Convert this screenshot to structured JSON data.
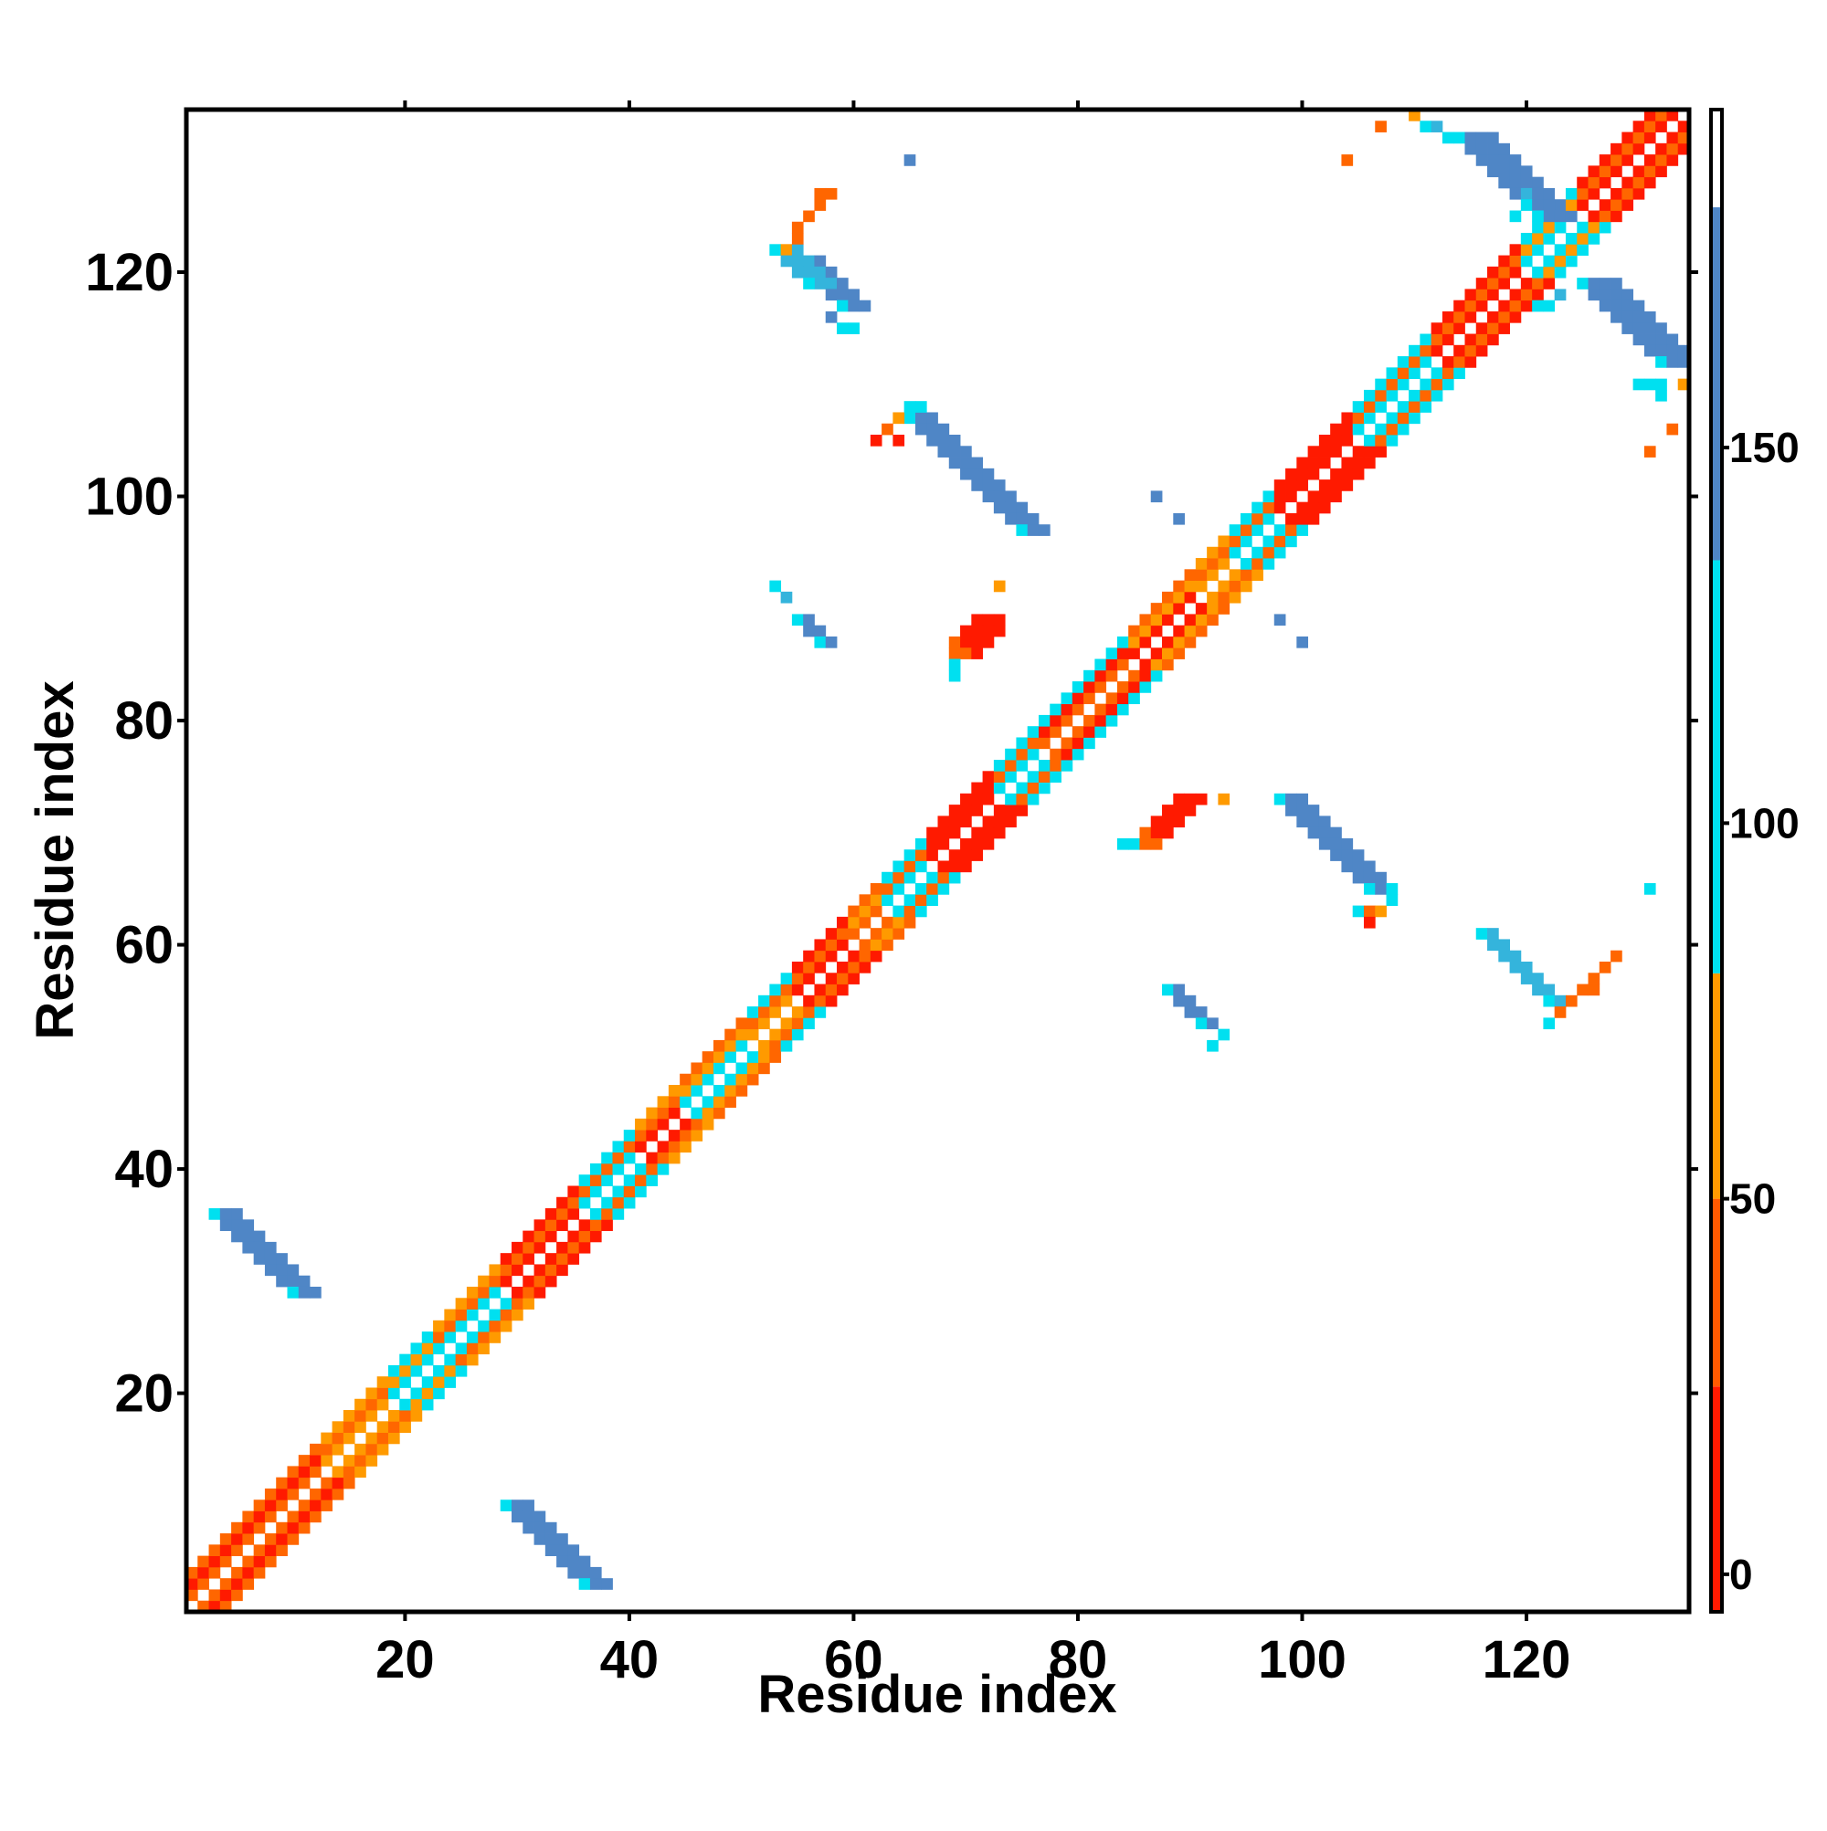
{
  "chart_data": {
    "type": "heatmap",
    "title": "",
    "xlabel": "Residue index",
    "ylabel": "Residue index",
    "xlim": [
      0.5,
      134.5
    ],
    "ylim": [
      0.5,
      134.5
    ],
    "x_ticks": [
      20,
      40,
      60,
      80,
      100,
      120
    ],
    "y_ticks": [
      20,
      40,
      60,
      80,
      100,
      120
    ],
    "colorbar": {
      "ticks": [
        0,
        50,
        100,
        150
      ],
      "range": [
        -5,
        195
      ],
      "bands": [
        {
          "from": -5,
          "to": 25,
          "color": "#ff1a00"
        },
        {
          "from": 25,
          "to": 50,
          "color": "#ff5a00"
        },
        {
          "from": 50,
          "to": 80,
          "color": "#ff9a00"
        },
        {
          "from": 80,
          "to": 135,
          "color": "#00e0f0"
        },
        {
          "from": 135,
          "to": 182,
          "color": "#4f86c6"
        },
        {
          "from": 182,
          "to": 195,
          "color": "#ffffff"
        }
      ]
    },
    "colors": {
      "red": "#ff1a00",
      "orange": "#ff6600",
      "amber": "#ff9a00",
      "cyan": "#00e0f0",
      "lightblue": "#34b4dc",
      "steelblue": "#4f86c6"
    },
    "diagonal_segments": [
      {
        "from": 1,
        "to": 12,
        "colors": [
          "orange",
          "red",
          "orange"
        ]
      },
      {
        "from": 13,
        "to": 18,
        "colors": [
          "amber",
          "orange",
          "amber"
        ]
      },
      {
        "from": 19,
        "to": 22,
        "colors": [
          "cyan",
          "amber",
          "cyan"
        ]
      },
      {
        "from": 23,
        "to": 28,
        "colors": [
          "cyan",
          "orange",
          "amber"
        ]
      },
      {
        "from": 29,
        "to": 35,
        "colors": [
          "red",
          "orange",
          "red"
        ]
      },
      {
        "from": 36,
        "to": 40,
        "colors": [
          "cyan",
          "orange",
          "cyan"
        ]
      },
      {
        "from": 41,
        "to": 44,
        "colors": [
          "red",
          "orange",
          "amber"
        ]
      },
      {
        "from": 45,
        "to": 50,
        "colors": [
          "cyan",
          "amber",
          "orange"
        ]
      },
      {
        "from": 51,
        "to": 54,
        "colors": [
          "amber",
          "orange",
          "cyan"
        ]
      },
      {
        "from": 55,
        "to": 59,
        "colors": [
          "red",
          "orange",
          "red"
        ]
      },
      {
        "from": 60,
        "to": 62,
        "colors": [
          "orange",
          "amber",
          "orange"
        ]
      },
      {
        "from": 63,
        "to": 66,
        "colors": [
          "cyan",
          "orange",
          "cyan"
        ]
      },
      {
        "from": 67,
        "to": 72,
        "colors": [
          "red",
          "red",
          "red"
        ]
      },
      {
        "from": 73,
        "to": 76,
        "colors": [
          "cyan",
          "orange",
          "cyan"
        ]
      },
      {
        "from": 77,
        "to": 84,
        "colors": [
          "orange",
          "red",
          "cyan"
        ]
      },
      {
        "from": 85,
        "to": 90,
        "colors": [
          "red",
          "amber",
          "orange"
        ]
      },
      {
        "from": 91,
        "to": 93,
        "colors": [
          "amber",
          "orange",
          "amber"
        ]
      },
      {
        "from": 94,
        "to": 97,
        "colors": [
          "cyan",
          "orange",
          "cyan"
        ]
      },
      {
        "from": 98,
        "to": 104,
        "colors": [
          "red",
          "red",
          "red"
        ]
      },
      {
        "from": 105,
        "to": 111,
        "colors": [
          "cyan",
          "orange",
          "cyan"
        ]
      },
      {
        "from": 112,
        "to": 119,
        "colors": [
          "red",
          "orange",
          "red"
        ]
      },
      {
        "from": 120,
        "to": 124,
        "colors": [
          "cyan",
          "amber",
          "cyan"
        ]
      },
      {
        "from": 125,
        "to": 134,
        "colors": [
          "red",
          "orange",
          "red"
        ]
      }
    ],
    "stripes": [
      {
        "x1": 3,
        "y1": 36,
        "x2": 10,
        "y2": 29,
        "w": 3,
        "color": "steelblue",
        "edge": "cyan"
      },
      {
        "x1": 29,
        "y1": 10,
        "x2": 36,
        "y2": 3,
        "w": 3,
        "color": "steelblue",
        "edge": "cyan"
      },
      {
        "x1": 55,
        "y1": 121,
        "x2": 59,
        "y2": 117,
        "w": 3,
        "color": "steelblue",
        "edge": "cyan"
      },
      {
        "x1": 53,
        "y1": 122,
        "x2": 56,
        "y2": 119,
        "w": 3,
        "color": "lightblue",
        "edge": "cyan"
      },
      {
        "x1": 65,
        "y1": 107,
        "x2": 73,
        "y2": 97,
        "w": 3,
        "color": "steelblue",
        "edge": "cyan"
      },
      {
        "x1": 98,
        "y1": 73,
        "x2": 106,
        "y2": 65,
        "w": 3,
        "color": "steelblue",
        "edge": "cyan"
      },
      {
        "x1": 114,
        "y1": 132,
        "x2": 120,
        "y2": 125,
        "w": 4,
        "color": "steelblue",
        "edge": "cyan"
      },
      {
        "x1": 125,
        "y1": 119,
        "x2": 132,
        "y2": 112,
        "w": 4,
        "color": "steelblue",
        "edge": "cyan"
      },
      {
        "x1": 55,
        "y1": 89,
        "x2": 57,
        "y2": 87,
        "w": 2,
        "color": "steelblue",
        "edge": "cyan"
      },
      {
        "x1": 88,
        "y1": 56,
        "x2": 91,
        "y2": 53,
        "w": 2,
        "color": "steelblue",
        "edge": "cyan"
      },
      {
        "x1": 116,
        "y1": 61,
        "x2": 121,
        "y2": 55,
        "w": 2,
        "color": "lightblue",
        "edge": "cyan"
      }
    ],
    "cells": [
      {
        "x": 65,
        "y": 130,
        "c": "steelblue"
      },
      {
        "x": 53,
        "y": 92,
        "c": "cyan"
      },
      {
        "x": 54,
        "y": 91,
        "c": "lightblue"
      },
      {
        "x": 110,
        "y": 134,
        "c": "amber"
      },
      {
        "x": 107,
        "y": 133,
        "c": "orange"
      },
      {
        "x": 104,
        "y": 130,
        "c": "orange"
      },
      {
        "x": 111,
        "y": 133,
        "c": "cyan"
      },
      {
        "x": 112,
        "y": 133,
        "c": "lightblue"
      },
      {
        "x": 58,
        "y": 127,
        "c": "orange"
      },
      {
        "x": 57,
        "y": 127,
        "c": "orange"
      },
      {
        "x": 57,
        "y": 126,
        "c": "orange"
      },
      {
        "x": 56,
        "y": 125,
        "c": "orange"
      },
      {
        "x": 55,
        "y": 124,
        "c": "orange"
      },
      {
        "x": 55,
        "y": 123,
        "c": "orange"
      },
      {
        "x": 54,
        "y": 122,
        "c": "amber"
      },
      {
        "x": 58,
        "y": 116,
        "c": "steelblue"
      },
      {
        "x": 59,
        "y": 115,
        "c": "cyan"
      },
      {
        "x": 60,
        "y": 115,
        "c": "cyan"
      },
      {
        "x": 64,
        "y": 107,
        "c": "amber"
      },
      {
        "x": 63,
        "y": 106,
        "c": "orange"
      },
      {
        "x": 62,
        "y": 105,
        "c": "red"
      },
      {
        "x": 64,
        "y": 105,
        "c": "red"
      },
      {
        "x": 65,
        "y": 108,
        "c": "cyan"
      },
      {
        "x": 66,
        "y": 108,
        "c": "cyan"
      },
      {
        "x": 73,
        "y": 92,
        "c": "amber"
      },
      {
        "x": 71,
        "y": 89,
        "c": "red"
      },
      {
        "x": 72,
        "y": 89,
        "c": "red"
      },
      {
        "x": 73,
        "y": 89,
        "c": "red"
      },
      {
        "x": 70,
        "y": 88,
        "c": "red"
      },
      {
        "x": 71,
        "y": 88,
        "c": "red"
      },
      {
        "x": 72,
        "y": 88,
        "c": "red"
      },
      {
        "x": 73,
        "y": 88,
        "c": "red"
      },
      {
        "x": 69,
        "y": 87,
        "c": "orange"
      },
      {
        "x": 70,
        "y": 87,
        "c": "red"
      },
      {
        "x": 71,
        "y": 87,
        "c": "red"
      },
      {
        "x": 72,
        "y": 87,
        "c": "red"
      },
      {
        "x": 69,
        "y": 86,
        "c": "orange"
      },
      {
        "x": 70,
        "y": 86,
        "c": "orange"
      },
      {
        "x": 71,
        "y": 86,
        "c": "red"
      },
      {
        "x": 69,
        "y": 85,
        "c": "cyan"
      },
      {
        "x": 69,
        "y": 84,
        "c": "cyan"
      },
      {
        "x": 87,
        "y": 100,
        "c": "steelblue"
      },
      {
        "x": 89,
        "y": 98,
        "c": "steelblue"
      },
      {
        "x": 98,
        "y": 89,
        "c": "steelblue"
      },
      {
        "x": 100,
        "y": 87,
        "c": "steelblue"
      },
      {
        "x": 89,
        "y": 73,
        "c": "red"
      },
      {
        "x": 90,
        "y": 73,
        "c": "red"
      },
      {
        "x": 91,
        "y": 73,
        "c": "red"
      },
      {
        "x": 93,
        "y": 73,
        "c": "amber"
      },
      {
        "x": 88,
        "y": 72,
        "c": "red"
      },
      {
        "x": 89,
        "y": 72,
        "c": "red"
      },
      {
        "x": 90,
        "y": 72,
        "c": "red"
      },
      {
        "x": 87,
        "y": 71,
        "c": "red"
      },
      {
        "x": 88,
        "y": 71,
        "c": "red"
      },
      {
        "x": 89,
        "y": 71,
        "c": "red"
      },
      {
        "x": 86,
        "y": 70,
        "c": "orange"
      },
      {
        "x": 87,
        "y": 70,
        "c": "red"
      },
      {
        "x": 88,
        "y": 70,
        "c": "red"
      },
      {
        "x": 84,
        "y": 69,
        "c": "cyan"
      },
      {
        "x": 85,
        "y": 69,
        "c": "cyan"
      },
      {
        "x": 86,
        "y": 69,
        "c": "orange"
      },
      {
        "x": 87,
        "y": 69,
        "c": "orange"
      },
      {
        "x": 105,
        "y": 63,
        "c": "cyan"
      },
      {
        "x": 106,
        "y": 63,
        "c": "orange"
      },
      {
        "x": 107,
        "y": 63,
        "c": "amber"
      },
      {
        "x": 106,
        "y": 62,
        "c": "red"
      },
      {
        "x": 108,
        "y": 64,
        "c": "cyan"
      },
      {
        "x": 108,
        "y": 65,
        "c": "cyan"
      },
      {
        "x": 131,
        "y": 65,
        "c": "cyan"
      },
      {
        "x": 128,
        "y": 59,
        "c": "orange"
      },
      {
        "x": 127,
        "y": 58,
        "c": "orange"
      },
      {
        "x": 126,
        "y": 57,
        "c": "orange"
      },
      {
        "x": 125,
        "y": 56,
        "c": "orange"
      },
      {
        "x": 126,
        "y": 56,
        "c": "orange"
      },
      {
        "x": 124,
        "y": 55,
        "c": "orange"
      },
      {
        "x": 123,
        "y": 54,
        "c": "orange"
      },
      {
        "x": 122,
        "y": 53,
        "c": "cyan"
      },
      {
        "x": 92,
        "y": 51,
        "c": "cyan"
      },
      {
        "x": 93,
        "y": 52,
        "c": "cyan"
      },
      {
        "x": 134,
        "y": 110,
        "c": "amber"
      },
      {
        "x": 133,
        "y": 106,
        "c": "orange"
      },
      {
        "x": 131,
        "y": 104,
        "c": "orange"
      },
      {
        "x": 132,
        "y": 109,
        "c": "cyan"
      },
      {
        "x": 131,
        "y": 110,
        "c": "cyan"
      },
      {
        "x": 132,
        "y": 110,
        "c": "cyan"
      },
      {
        "x": 130,
        "y": 110,
        "c": "cyan"
      },
      {
        "x": 113,
        "y": 132,
        "c": "cyan"
      },
      {
        "x": 120,
        "y": 126,
        "c": "cyan"
      },
      {
        "x": 120,
        "y": 127,
        "c": "lightblue"
      },
      {
        "x": 119,
        "y": 125,
        "c": "cyan"
      },
      {
        "x": 122,
        "y": 117,
        "c": "cyan"
      },
      {
        "x": 121,
        "y": 117,
        "c": "cyan"
      },
      {
        "x": 123,
        "y": 118,
        "c": "lightblue"
      }
    ]
  }
}
